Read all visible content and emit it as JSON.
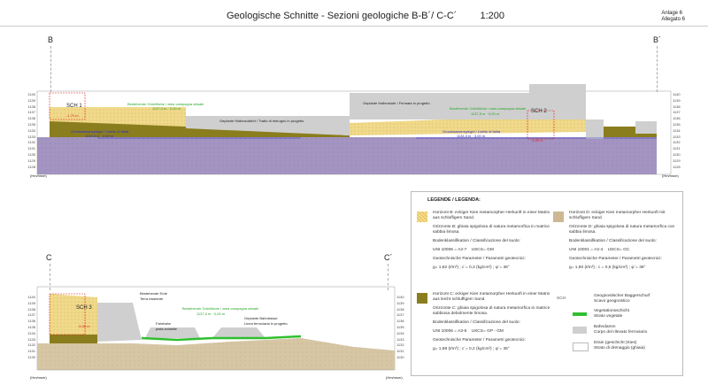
{
  "header": {
    "title": "Geologische Schnitte - Sezioni geologiche B-B´/ C-C´",
    "scale": "1:200",
    "annex_de": "Anlage 6",
    "annex_it": "Allegato 6"
  },
  "section_bb": {
    "left_label": "B",
    "right_label": "B´",
    "axis_unit": "(Hm/msm)",
    "elevations": [
      "1140",
      "1139",
      "1138",
      "1137",
      "1136",
      "1135",
      "1134",
      "1133",
      "1132",
      "1131",
      "1130",
      "1129",
      "1128"
    ],
    "sch1": "SCH 1",
    "sch1_depth": "-1,70 m",
    "sch2": "SCH 2",
    "sch2_depth": "-4,00 m",
    "field_label": "Bestehende Grünfläche / area campagna attuale",
    "field_level": "1137,0 m · 0,00 m",
    "track_label": "Geplante Hallenzufahrt / Tratto di ristrugno in progetto",
    "hall_label": "Geplante Hallenstufe / Fermata in progetto",
    "field_label_right": "Bestehende Grünfläche / area campagna attuale",
    "field_level_right": "1137,5 m · 0,00 m",
    "water_label": "Grundwasserspiegel / Livello di falda",
    "water_level": "1134,8 m · 2,00 m",
    "water_label_right": "Grundwasserspiegel / Livello di falda",
    "water_level_right": "1134,3 m · 3,00 m"
  },
  "section_cc": {
    "left_label": "C",
    "right_label": "C´",
    "axis_unit": "(Hm/msm)",
    "elevations": [
      "1140",
      "1139",
      "1138",
      "1137",
      "1136",
      "1135",
      "1134",
      "1133",
      "1132",
      "1131",
      "1130"
    ],
    "sch3": "SCH 3",
    "sch3_depth": "-5,00 m",
    "existing_de": "Bestehende Erde",
    "existing_it": "Terra esistente",
    "field_label": "Bestehende Grünfläche / area campagna attuale",
    "field_level": "1137,0 m · 0,00 m",
    "road_de": "Fahrbahn",
    "road_it": "pista ciclabile",
    "track_de": "Geplante Bahntrasse",
    "track_it": "Linea ferroviaria in progetto"
  },
  "legend": {
    "title": "LEGENDE / LEGENDA:",
    "horizon_b": {
      "de": "Horizont B: eckiger Kies metamorpher Herkunft in einer Matrix aus schluffigem Sand.",
      "it": "Orizzonte B: ghiaia spigolosa di natura metamorfica in matrice sabbia limosa.",
      "classification": "Bodenklassifikation / Classificazione del suolo:",
      "uni": "UNI 10006 = A2-7",
      "uscs": "USCS= GM",
      "params": "Geotechnische Parameter / Parametri geotecnici:",
      "values": "g= 1,82 (t/m³) ; c´= 0,3 (kg/cm²) ; φ´= 36°"
    },
    "horizon_d": {
      "de": "Horizont D: eckiger Kies metamorpher Herkunft mit schluffigem Sand.",
      "it": "Orizzonte D: ghiaia spigolosa di natura metamorfica con sabbia limosa.",
      "classification": "Bodenklassifikation / Classificazione del suolo:",
      "uni": "UNI 10001 = A2-4",
      "uscs": "USCS= GC",
      "params": "Geotechnische Parameter / Parametri geotecnici:",
      "values": "g= 1,90 (t/m³) ; c = 0,5 (kg/cm²) ; φ´= 36°"
    },
    "horizon_c": {
      "de": "Horizont C: eckiger Kies metamorpher Herkunft in einer Matrix aus leicht schluffigem Sand.",
      "it": "Orizzonte C: ghiaia spigolosa di natura metamorfica in matrice sabbiosa debolmente limosa.",
      "classification": "Bodenklassifikation / Classificazione del suolo:",
      "uni": "UNI 10006 = A2-6",
      "uscs": "USCS= GP - GM",
      "params": "Geotechnische Parameter / Parametri geotecnici:",
      "values": "g= 1,98 (t/m³) ; c´= 0,2 (kg/cm²) ; φ´= 36°"
    },
    "items": [
      {
        "code": "SCH",
        "de": "Geognostischer Baggerschurf",
        "it": "Scavo geognostico"
      },
      {
        "de": "Vegetationsschicht",
        "it": "Strato vegetale"
      },
      {
        "de": "Bahndamm",
        "it": "Corpo del rilevato ferroviario"
      },
      {
        "de": "Drain (geschicht (Kies)",
        "it": "Strato di drenaggio (ghiaia)"
      }
    ]
  },
  "colors": {
    "purple": "#a394c2",
    "yellow": "#f0d98a",
    "olive": "#8a7d1e",
    "tan": "#c9b27e",
    "grey": "#cfcfcf",
    "sand": "#d9ccb2",
    "green": "#2fbf2f"
  }
}
